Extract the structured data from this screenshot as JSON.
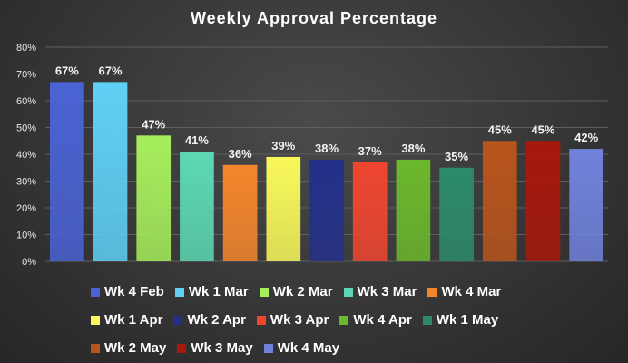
{
  "chart_data": {
    "type": "bar",
    "title": "Weekly Approval Percentage",
    "xlabel": "",
    "ylabel": "",
    "categories": [
      "Wk 4 Feb",
      "Wk 1 Mar",
      "Wk 2 Mar",
      "Wk 3 Mar",
      "Wk 4 Mar",
      "Wk 1 Apr",
      "Wk 2 Apr",
      "Wk 3 Apr",
      "Wk 4 Apr",
      "Wk 1 May",
      "Wk 2 May",
      "Wk 3 May",
      "Wk 4 May"
    ],
    "values": [
      67,
      67,
      47,
      41,
      36,
      39,
      38,
      37,
      38,
      35,
      45,
      45,
      42
    ],
    "value_labels": [
      "67%",
      "67%",
      "47%",
      "41%",
      "36%",
      "39%",
      "38%",
      "37%",
      "38%",
      "35%",
      "45%",
      "45%",
      "42%"
    ],
    "colors": [
      "#4a63d4",
      "#5fd0f5",
      "#a6ee5c",
      "#5cd8b4",
      "#f4862c",
      "#f8f85a",
      "#22308a",
      "#ef4630",
      "#6cb82c",
      "#2c8a6c",
      "#b8541c",
      "#a8180c",
      "#7082dc"
    ],
    "ylim": [
      0,
      80
    ],
    "yticks": [
      "0%",
      "10%",
      "20%",
      "30%",
      "40%",
      "50%",
      "60%",
      "70%",
      "80%"
    ],
    "grid": true,
    "legend_position": "bottom"
  }
}
